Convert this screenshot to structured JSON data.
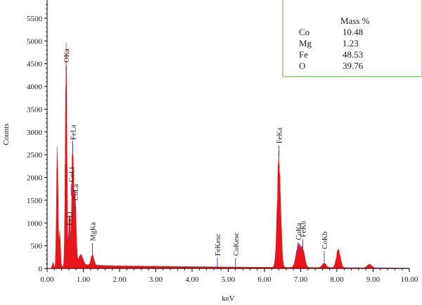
{
  "chart_data": {
    "type": "area",
    "xlabel": "keV",
    "ylabel": "Counts",
    "xlim": [
      0,
      10
    ],
    "ylim": [
      0,
      5900
    ],
    "x_ticks": [
      "0.00",
      "1.00",
      "2.00",
      "3.00",
      "4.00",
      "5.00",
      "6.00",
      "7.00",
      "8.00",
      "9.00",
      "10.00"
    ],
    "y_ticks": [
      "0",
      "500",
      "1000",
      "1500",
      "2000",
      "2500",
      "3000",
      "3500",
      "4000",
      "4500",
      "5000",
      "5500"
    ],
    "grid": false,
    "series_color": "#e8161b",
    "peaks": [
      {
        "center": 0.16,
        "height": 110,
        "width": 0.02
      },
      {
        "center": 0.28,
        "height": 2500,
        "width": 0.022
      },
      {
        "center": 0.35,
        "height": 700,
        "width": 0.02
      },
      {
        "center": 0.525,
        "height": 4400,
        "width": 0.024
      },
      {
        "center": 0.62,
        "height": 1200,
        "width": 0.022
      },
      {
        "center": 0.705,
        "height": 2700,
        "width": 0.025
      },
      {
        "center": 0.776,
        "height": 1450,
        "width": 0.028
      },
      {
        "center": 0.93,
        "height": 200,
        "width": 0.06
      },
      {
        "center": 1.25,
        "height": 230,
        "width": 0.04
      },
      {
        "center": 6.4,
        "height": 2350,
        "width": 0.048
      },
      {
        "center": 6.93,
        "height": 470,
        "width": 0.06
      },
      {
        "center": 7.06,
        "height": 350,
        "width": 0.055
      },
      {
        "center": 7.65,
        "height": 90,
        "width": 0.055
      },
      {
        "center": 8.04,
        "height": 380,
        "width": 0.055
      },
      {
        "center": 8.9,
        "height": 75,
        "width": 0.06
      }
    ],
    "background": [
      {
        "x": 0.9,
        "y": 80
      },
      {
        "x": 2.0,
        "y": 55
      },
      {
        "x": 4.0,
        "y": 38
      },
      {
        "x": 6.0,
        "y": 25
      },
      {
        "x": 8.5,
        "y": 15
      },
      {
        "x": 10.0,
        "y": 8
      }
    ],
    "peak_labels": [
      {
        "text": "OKa",
        "x": 0.525,
        "y": 4480
      },
      {
        "text": "FeLa",
        "x": 0.705,
        "y": 2780
      },
      {
        "text": "CoLl",
        "x": 0.665,
        "y": 1850
      },
      {
        "text": "CoLa",
        "x": 0.776,
        "y": 1450
      },
      {
        "text": "FeLl",
        "x": 0.615,
        "y": 900
      },
      {
        "text": "MgKa",
        "x": 1.25,
        "y": 560
      },
      {
        "text": "FeKesc",
        "x": 4.7,
        "y": 230
      },
      {
        "text": "CoKesc",
        "x": 5.2,
        "y": 230
      },
      {
        "text": "FeKa",
        "x": 6.4,
        "y": 2700
      },
      {
        "text": "CoKa",
        "x": 6.93,
        "y": 580
      },
      {
        "text": "FeKb",
        "x": 7.06,
        "y": 640
      },
      {
        "text": "CoKb",
        "x": 7.65,
        "y": 380
      }
    ],
    "legend": {
      "header": "Mass %",
      "rows": [
        {
          "element": "Co",
          "value": "10.48"
        },
        {
          "element": "Mg",
          "value": "1.23"
        },
        {
          "element": "Fe",
          "value": "48.53"
        },
        {
          "element": "O",
          "value": "39.76"
        }
      ],
      "placement": "top-right",
      "border_color": "#7cc16a"
    }
  }
}
